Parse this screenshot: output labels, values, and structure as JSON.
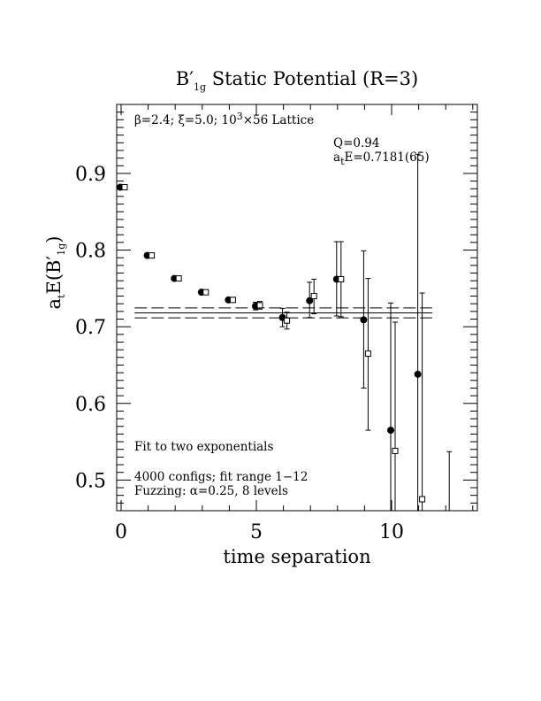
{
  "chart_data": {
    "type": "scatter",
    "title": {
      "main": "B",
      "prime": "′",
      "sub": "1g",
      "rest": " Static Potential (R=3)"
    },
    "xlabel": "time separation",
    "ylabel": {
      "prefix": "a",
      "prefix_sub": "t",
      "mid": "E(B",
      "prime": "′",
      "sub": "1g",
      "suffix": ")"
    },
    "xlim": [
      -0.1,
      13.1
    ],
    "ylim": [
      0.46,
      0.99
    ],
    "xticks": [
      {
        "value": 0,
        "label": "0"
      },
      {
        "value": 5,
        "label": "5"
      },
      {
        "value": 10,
        "label": "10"
      }
    ],
    "yticks": [
      {
        "value": 0.5,
        "label": "0.5"
      },
      {
        "value": 0.6,
        "label": "0.6"
      },
      {
        "value": 0.7,
        "label": "0.7"
      },
      {
        "value": 0.8,
        "label": "0.8"
      },
      {
        "value": 0.9,
        "label": "0.9"
      }
    ],
    "grid": false,
    "legend": "none",
    "series": [
      {
        "marker": "filled-circle",
        "points": [
          {
            "x": 0,
            "y": 0.882,
            "lo": 0.88,
            "hi": 0.884
          },
          {
            "x": 1,
            "y": 0.793,
            "lo": 0.791,
            "hi": 0.795
          },
          {
            "x": 2,
            "y": 0.763,
            "lo": 0.761,
            "hi": 0.765
          },
          {
            "x": 3,
            "y": 0.745,
            "lo": 0.743,
            "hi": 0.747
          },
          {
            "x": 4,
            "y": 0.735,
            "lo": 0.733,
            "hi": 0.737
          },
          {
            "x": 5,
            "y": 0.727,
            "lo": 0.722,
            "hi": 0.732
          },
          {
            "x": 6,
            "y": 0.712,
            "lo": 0.7,
            "hi": 0.724
          },
          {
            "x": 7,
            "y": 0.734,
            "lo": 0.712,
            "hi": 0.758
          },
          {
            "x": 8,
            "y": 0.762,
            "lo": 0.714,
            "hi": 0.811
          },
          {
            "x": 9,
            "y": 0.709,
            "lo": 0.62,
            "hi": 0.799
          },
          {
            "x": 10,
            "y": 0.565,
            "lo": 0.4,
            "hi": 0.731
          },
          {
            "x": 11,
            "y": 0.638,
            "lo": 0.4,
            "hi": 0.925
          }
        ]
      },
      {
        "marker": "open-square",
        "points": [
          {
            "x": 0,
            "y": 0.882,
            "lo": 0.88,
            "hi": 0.884
          },
          {
            "x": 1,
            "y": 0.793,
            "lo": 0.791,
            "hi": 0.795
          },
          {
            "x": 2,
            "y": 0.763,
            "lo": 0.761,
            "hi": 0.765
          },
          {
            "x": 3,
            "y": 0.745,
            "lo": 0.743,
            "hi": 0.747
          },
          {
            "x": 4,
            "y": 0.735,
            "lo": 0.733,
            "hi": 0.737
          },
          {
            "x": 5,
            "y": 0.728,
            "lo": 0.723,
            "hi": 0.733
          },
          {
            "x": 6,
            "y": 0.708,
            "lo": 0.697,
            "hi": 0.719
          },
          {
            "x": 7,
            "y": 0.74,
            "lo": 0.717,
            "hi": 0.762
          },
          {
            "x": 8,
            "y": 0.762,
            "lo": 0.713,
            "hi": 0.811
          },
          {
            "x": 9,
            "y": 0.665,
            "lo": 0.565,
            "hi": 0.763
          },
          {
            "x": 10,
            "y": 0.538,
            "lo": 0.4,
            "hi": 0.706
          },
          {
            "x": 11,
            "y": 0.475,
            "lo": 0.4,
            "hi": 0.744
          },
          {
            "x": 12,
            "y": null,
            "lo": 0.4,
            "hi": 0.537
          }
        ]
      }
    ],
    "fit": {
      "x_start": 0.5,
      "x_end": 11.5,
      "center": 0.7181,
      "error": 0.0065,
      "label_q": "Q=0.94",
      "label_e": {
        "prefix": "a",
        "sub": "t",
        "rest": "E=0.7181(65)"
      }
    },
    "annotations": {
      "lattice": {
        "beta": "β=2.4; ",
        "xi": "ξ=5.0; ",
        "size": "10",
        "size_sup": "3",
        "rest": "×56 Lattice"
      },
      "fit_type": "Fit to two exponentials",
      "configs": "4000 configs; fit range 1−12",
      "fuzzing": "Fuzzing: α=0.25, 8 levels"
    }
  }
}
